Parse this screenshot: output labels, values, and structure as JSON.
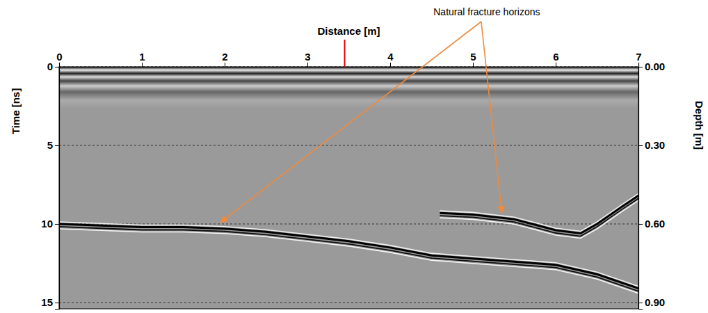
{
  "chart_data": {
    "type": "line",
    "x_label": "Distance [m]",
    "y_label": "Time [ns]",
    "y2_label": "Depth [m]",
    "xlim": [
      0,
      7
    ],
    "xticks": [
      0,
      1,
      2,
      3,
      4,
      5,
      6,
      7
    ],
    "ylim": [
      0,
      15.4
    ],
    "yticks": [
      0,
      5,
      10,
      15
    ],
    "y2lim": [
      0,
      0.924
    ],
    "y2ticks": [
      {
        "value": 0,
        "label": "0.00"
      },
      {
        "value": 0.3,
        "label": "0.30"
      },
      {
        "value": 0.6,
        "label": "0.60"
      },
      {
        "value": 0.9,
        "label": "0.90"
      }
    ],
    "grid": true,
    "series": [
      {
        "color": "#000000",
        "x": [
          0,
          0.5,
          1,
          1.5,
          2,
          2.5,
          3,
          3.5,
          4,
          4.5,
          5,
          5.5,
          6,
          6.5,
          7
        ],
        "values": [
          10.0,
          10.1,
          10.2,
          10.2,
          10.3,
          10.5,
          10.8,
          11.1,
          11.5,
          12.0,
          12.2,
          12.4,
          12.6,
          13.2,
          14.1
        ]
      },
      {
        "color": "#000000",
        "x": [
          4.6,
          5.0,
          5.5,
          6.0,
          6.3,
          6.5,
          6.8,
          7.0
        ],
        "values": [
          9.3,
          9.4,
          9.7,
          10.4,
          10.6,
          10.0,
          8.9,
          8.2
        ]
      }
    ],
    "annotation": {
      "text": "Natural fracture horizons",
      "color": "#f08a3c",
      "x": 5.1,
      "arrows_to": [
        [
          1.95,
          9.9
        ],
        [
          5.35,
          9.3
        ]
      ]
    },
    "marker_line": {
      "x": 3.45,
      "color": "#e00000"
    }
  }
}
